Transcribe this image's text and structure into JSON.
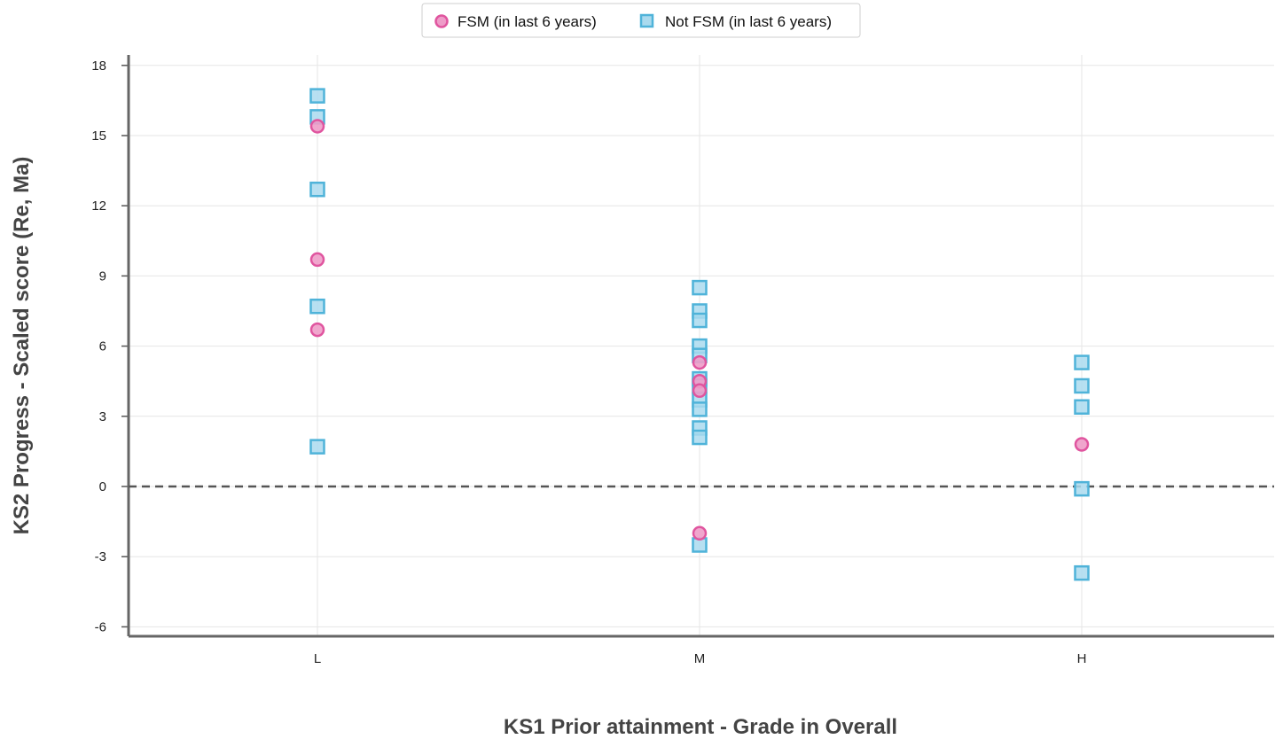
{
  "chart_data": {
    "type": "scatter",
    "title": "",
    "xlabel": "KS1 Prior attainment - Grade in Overall",
    "ylabel": "KS2 Progress - Scaled score (Re, Ma)",
    "categories": [
      "L",
      "M",
      "H"
    ],
    "y_ticks": [
      -6,
      -3,
      0,
      3,
      6,
      9,
      12,
      15,
      18
    ],
    "ylim": [
      -6.4,
      18.5
    ],
    "grid": true,
    "reference_line": {
      "y": 0,
      "style": "dashed"
    },
    "legend": {
      "position": "top-center"
    },
    "series": [
      {
        "name": "FSM (in last 6 years)",
        "marker": "circle",
        "color": "#e0559f",
        "fill": "#ee9cc8",
        "points": [
          {
            "x": "L",
            "y": 15.4
          },
          {
            "x": "L",
            "y": 9.7
          },
          {
            "x": "L",
            "y": 6.7
          },
          {
            "x": "M",
            "y": 5.3
          },
          {
            "x": "M",
            "y": 4.5
          },
          {
            "x": "M",
            "y": 4.1
          },
          {
            "x": "M",
            "y": -2.0
          },
          {
            "x": "H",
            "y": 1.8
          }
        ]
      },
      {
        "name": "Not FSM (in last 6 years)",
        "marker": "square",
        "color": "#4fb3d9",
        "fill": "#aadaee",
        "points": [
          {
            "x": "L",
            "y": 16.7
          },
          {
            "x": "L",
            "y": 15.8
          },
          {
            "x": "L",
            "y": 12.7
          },
          {
            "x": "L",
            "y": 7.7
          },
          {
            "x": "L",
            "y": 1.7
          },
          {
            "x": "M",
            "y": 8.5
          },
          {
            "x": "M",
            "y": 7.5
          },
          {
            "x": "M",
            "y": 7.1
          },
          {
            "x": "M",
            "y": 6.0
          },
          {
            "x": "M",
            "y": 5.6
          },
          {
            "x": "M",
            "y": 4.6
          },
          {
            "x": "M",
            "y": 4.3
          },
          {
            "x": "M",
            "y": 3.7
          },
          {
            "x": "M",
            "y": 3.3
          },
          {
            "x": "M",
            "y": 2.5
          },
          {
            "x": "M",
            "y": 2.1
          },
          {
            "x": "M",
            "y": -2.5
          },
          {
            "x": "H",
            "y": 5.3
          },
          {
            "x": "H",
            "y": 4.3
          },
          {
            "x": "H",
            "y": 3.4
          },
          {
            "x": "H",
            "y": -0.1
          },
          {
            "x": "H",
            "y": -3.7
          }
        ]
      }
    ]
  }
}
